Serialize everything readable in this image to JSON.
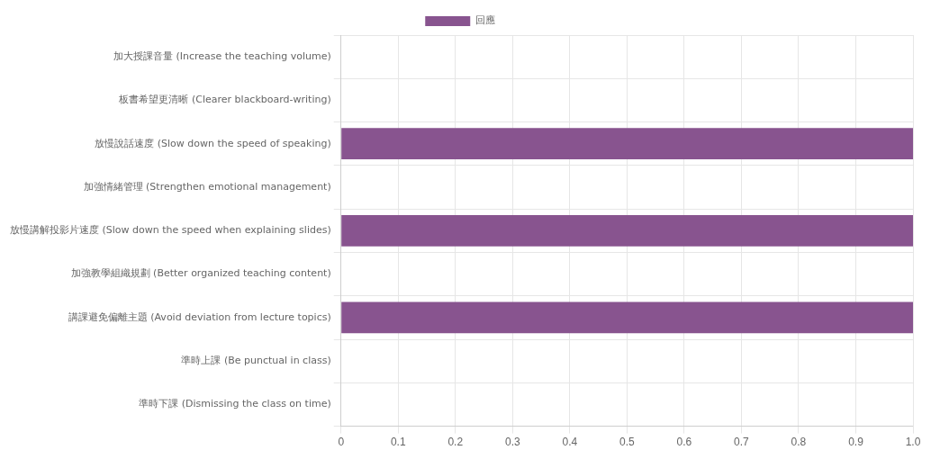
{
  "chart_data": {
    "type": "bar",
    "orientation": "horizontal",
    "categories": [
      "加大授課音量 (Increase the teaching volume)",
      "板書希望更清晰 (Clearer blackboard-writing)",
      "放慢說話速度 (Slow down the speed of speaking)",
      "加強情緒管理 (Strengthen emotional management)",
      "放慢講解投影片速度 (Slow down the speed when explaining slides)",
      "加強教學組織規劃 (Better organized teaching content)",
      "講課避免偏離主題 (Avoid deviation from lecture topics)",
      "準時上課 (Be punctual in class)",
      "準時下課 (Dismissing the class on time)"
    ],
    "series": [
      {
        "name": "回應",
        "color": "#88548f",
        "values": [
          0,
          0,
          1,
          0,
          1,
          0,
          1,
          0,
          0
        ]
      }
    ],
    "xlim": [
      0,
      1
    ],
    "xticks": [
      0,
      0.1,
      0.2,
      0.3,
      0.4,
      0.5,
      0.6,
      0.7,
      0.8,
      0.9,
      {
        "value": 1,
        "label": "1.0"
      }
    ],
    "grid": true,
    "legend": "top"
  }
}
